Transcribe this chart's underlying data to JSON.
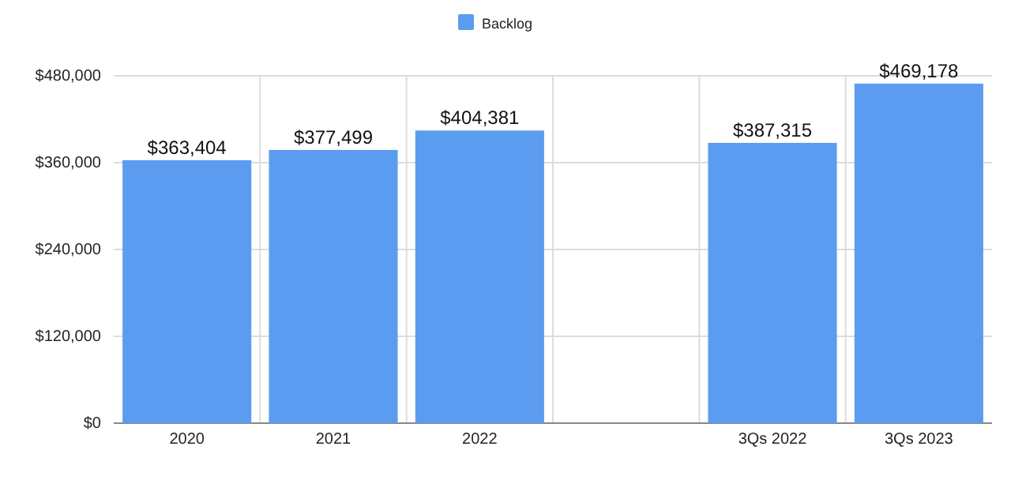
{
  "chart_data": {
    "type": "bar",
    "categories": [
      "2020",
      "2021",
      "2022",
      null,
      "3Qs 2022",
      "3Qs 2023"
    ],
    "series": [
      {
        "name": "Backlog",
        "color": "#5b9cf0",
        "values": [
          363404,
          377499,
          404381,
          null,
          387315,
          469178
        ],
        "value_labels": [
          "$363,404",
          "$377,499",
          "$404,381",
          null,
          "$387,315",
          "$469,178"
        ]
      }
    ],
    "ylim": [
      0,
      480000
    ],
    "yticks": [
      {
        "value": 0,
        "label": "$0"
      },
      {
        "value": 120000,
        "label": "$120,000"
      },
      {
        "value": 240000,
        "label": "$240,000"
      },
      {
        "value": 360000,
        "label": "$360,000"
      },
      {
        "value": 480000,
        "label": "$480,000"
      }
    ],
    "grid": true,
    "legend": "top"
  }
}
